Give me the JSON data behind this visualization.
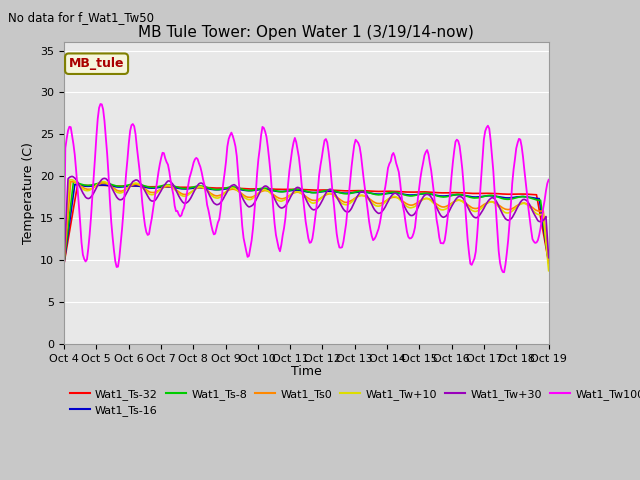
{
  "title": "MB Tule Tower: Open Water 1 (3/19/14-now)",
  "top_left_text": "No data for f_Wat1_Tw50",
  "xlabel": "Time",
  "ylabel": "Temperature (C)",
  "ylim": [
    0,
    36
  ],
  "yticks": [
    0,
    5,
    10,
    15,
    20,
    25,
    30,
    35
  ],
  "x_labels": [
    "Oct 4",
    "Oct 5",
    "Oct 6",
    "Oct 7",
    "Oct 8",
    "Oct 9",
    "Oct 10",
    "Oct 11",
    "Oct 12",
    "Oct 13",
    "Oct 14",
    "Oct 15",
    "Oct 16",
    "Oct 17",
    "Oct 18",
    "Oct 19"
  ],
  "fig_bg": "#c8c8c8",
  "plot_bg": "#e8e8e8",
  "grid_color": "#ffffff",
  "series_colors": {
    "Wat1_Ts-32": "#ff0000",
    "Wat1_Ts-16": "#0000cc",
    "Wat1_Ts-8": "#00cc00",
    "Wat1_Ts0": "#ff8800",
    "Wat1_Tw+10": "#dddd00",
    "Wat1_Tw+30": "#9900bb",
    "Wat1_Tw100": "#ff00ff"
  },
  "inset_label": "MB_tule",
  "inset_bg": "#f5f5dc",
  "inset_edge": "#808000",
  "inset_text_color": "#aa0000",
  "title_fontsize": 11,
  "label_fontsize": 9,
  "tick_fontsize": 8,
  "legend_fontsize": 8
}
